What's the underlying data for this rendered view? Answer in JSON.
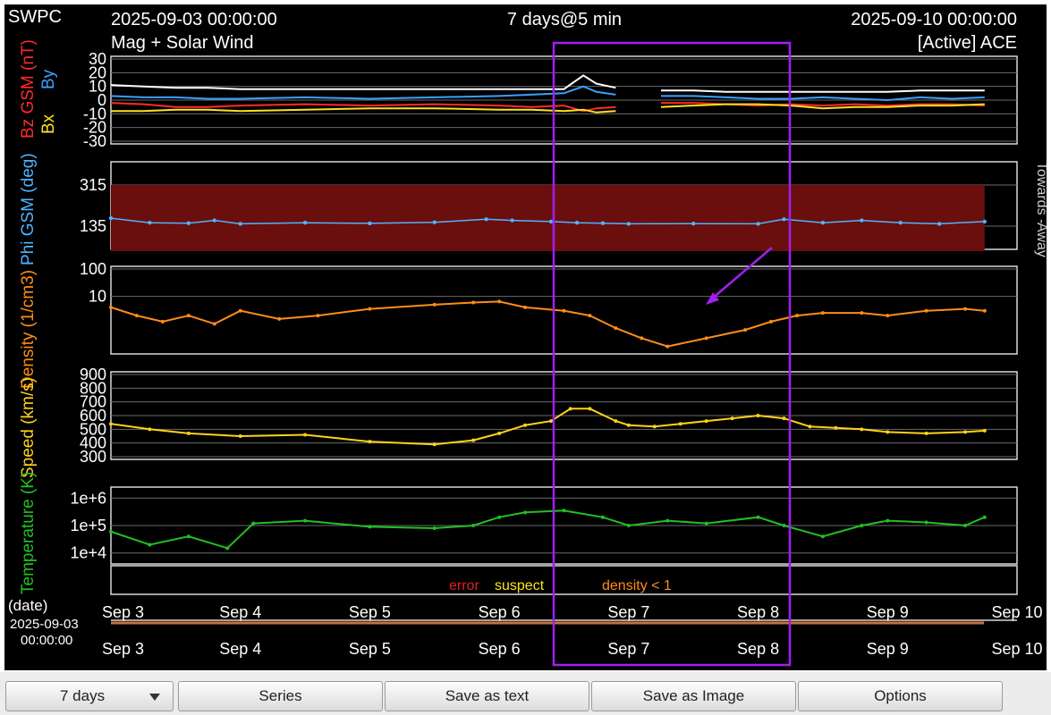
{
  "header": {
    "org": "SWPC",
    "start_time": "2025-09-03 00:00:00",
    "period": "7 days@5 min",
    "end_time": "2025-09-10 00:00:00",
    "product": "Mag + Solar Wind",
    "source": "[Active] ACE"
  },
  "controls": {
    "range_select": "7 days",
    "series_label": "Series",
    "save_text_label": "Save as text",
    "save_image_label": "Save as Image",
    "options_label": "Options"
  },
  "colors": {
    "bz": "#ff2a2a",
    "by": "#3aa0ff",
    "bx": "#ffe21a",
    "bt": "#ffffff",
    "phi": "#4fb4ff",
    "density": "#ff8c1a",
    "speed": "#ffd21a",
    "temperature": "#22c022",
    "highlight": "#a020f0",
    "away_band": "#6a0e0e",
    "error": "#e02020",
    "suspect": "#ffe21a"
  },
  "right_labels": {
    "away": "Away",
    "towards": "Towards -"
  },
  "flags_legend": {
    "error": "error",
    "suspect": "suspect",
    "density": "density < 1"
  },
  "time_axis": {
    "date_label": "(date)",
    "start_stamp_date": "2025-09-03",
    "start_stamp_time": "00:00:00",
    "ticks": [
      "Sep 3",
      "Sep 4",
      "Sep 5",
      "Sep 6",
      "Sep 7",
      "Sep 8",
      "Sep 9",
      "Sep 10"
    ]
  },
  "chart_data": [
    {
      "type": "line",
      "panel": "mag",
      "ylabel_parts": [
        "Bz GSM (nT)",
        "By",
        "Bx"
      ],
      "ylim": [
        -30,
        30
      ],
      "yticks": [
        -30,
        -20,
        -10,
        0,
        10,
        20,
        30
      ],
      "grid": true,
      "x_days": [
        0,
        0.25,
        0.5,
        0.75,
        1,
        1.5,
        2,
        2.5,
        3,
        3.25,
        3.5,
        3.65,
        3.75,
        3.9,
        4,
        4.25,
        4.5,
        4.75,
        5,
        5.25,
        5.5,
        5.75,
        6,
        6.25,
        6.5,
        6.75
      ],
      "series": [
        {
          "name": "Bt",
          "values": [
            11,
            10,
            9,
            9,
            8,
            8,
            8,
            8,
            8,
            8,
            8,
            18,
            12,
            9,
            null,
            7,
            7,
            6,
            6,
            6,
            6,
            6,
            6,
            7,
            7,
            7
          ]
        },
        {
          "name": "Bz",
          "values": [
            -2,
            -3,
            -5,
            -5,
            -4,
            -3,
            -4,
            -3,
            -4,
            -5,
            -4,
            -8,
            -6,
            -5,
            null,
            -2,
            -2,
            -3,
            -4,
            -3,
            -4,
            -3,
            -4,
            -3,
            -3,
            -4
          ]
        },
        {
          "name": "By",
          "values": [
            3,
            2,
            2,
            1,
            1,
            2,
            1,
            2,
            3,
            4,
            5,
            10,
            6,
            4,
            null,
            3,
            3,
            2,
            1,
            1,
            2,
            1,
            0,
            2,
            1,
            2
          ]
        },
        {
          "name": "Bx",
          "values": [
            -8,
            -8,
            -7,
            -7,
            -8,
            -7,
            -6,
            -6,
            -7,
            -7,
            -8,
            -7,
            -9,
            -8,
            null,
            -5,
            -4,
            -3,
            -3,
            -4,
            -6,
            -5,
            -5,
            -4,
            -4,
            -3
          ]
        }
      ]
    },
    {
      "type": "scatter",
      "panel": "phi",
      "ylabel": "Phi GSM (deg)",
      "ylim": [
        45,
        405
      ],
      "yticks": [
        135,
        315
      ],
      "grid": true,
      "x_days": [
        0,
        0.3,
        0.6,
        0.8,
        1,
        1.5,
        2,
        2.5,
        2.9,
        3.1,
        3.4,
        3.6,
        3.8,
        4,
        4.5,
        5,
        5.2,
        5.5,
        5.8,
        6.1,
        6.4,
        6.75
      ],
      "values": [
        170,
        150,
        148,
        160,
        145,
        150,
        147,
        152,
        165,
        160,
        155,
        150,
        148,
        145,
        146,
        145,
        165,
        150,
        160,
        150,
        145,
        155
      ]
    },
    {
      "type": "line",
      "panel": "density",
      "ylabel": "Density (1/cm3)",
      "scale": "log",
      "ylim": [
        0.1,
        100
      ],
      "yticks": [
        10,
        100
      ],
      "grid": true,
      "x_days": [
        0,
        0.2,
        0.4,
        0.6,
        0.8,
        1,
        1.3,
        1.6,
        2,
        2.5,
        2.8,
        3,
        3.2,
        3.5,
        3.7,
        3.9,
        4.1,
        4.3,
        4.6,
        4.9,
        5.1,
        5.3,
        5.5,
        5.8,
        6,
        6.3,
        6.6,
        6.75
      ],
      "values": [
        4,
        2,
        1.2,
        2,
        1,
        3,
        1.5,
        2,
        3.5,
        5,
        6,
        6.5,
        4,
        3,
        2,
        0.7,
        0.3,
        0.15,
        0.3,
        0.6,
        1.2,
        2,
        2.5,
        2.5,
        2,
        3,
        3.5,
        3
      ]
    },
    {
      "type": "line",
      "panel": "speed",
      "ylabel": "Speed (km/s)",
      "ylim": [
        300,
        900
      ],
      "yticks": [
        300,
        400,
        500,
        600,
        700,
        800,
        900
      ],
      "grid": true,
      "x_days": [
        0,
        0.3,
        0.6,
        1,
        1.5,
        2,
        2.5,
        2.8,
        3,
        3.2,
        3.4,
        3.55,
        3.7,
        3.9,
        4,
        4.2,
        4.4,
        4.6,
        4.8,
        5,
        5.2,
        5.4,
        5.6,
        5.8,
        6,
        6.3,
        6.6,
        6.75
      ],
      "values": [
        540,
        500,
        470,
        450,
        460,
        410,
        390,
        420,
        470,
        530,
        560,
        650,
        650,
        560,
        530,
        520,
        540,
        560,
        580,
        600,
        580,
        520,
        510,
        500,
        480,
        470,
        480,
        490
      ]
    },
    {
      "type": "line",
      "panel": "temperature",
      "ylabel": "Temperature (K)",
      "scale": "log",
      "ylim": [
        5000,
        2000000
      ],
      "ytick_labels": [
        "1e+4",
        "1e+5",
        "1e+6"
      ],
      "ytick_values": [
        10000,
        100000,
        1000000
      ],
      "grid": true,
      "x_days": [
        0,
        0.3,
        0.6,
        0.9,
        1.1,
        1.5,
        2,
        2.5,
        2.8,
        3,
        3.2,
        3.5,
        3.8,
        4,
        4.3,
        4.6,
        5,
        5.2,
        5.5,
        5.8,
        6,
        6.3,
        6.6,
        6.75
      ],
      "values": [
        60000,
        20000,
        40000,
        15000,
        120000,
        150000,
        90000,
        80000,
        100000,
        200000,
        300000,
        350000,
        200000,
        100000,
        150000,
        120000,
        200000,
        100000,
        40000,
        100000,
        150000,
        130000,
        100000,
        200000
      ]
    }
  ]
}
